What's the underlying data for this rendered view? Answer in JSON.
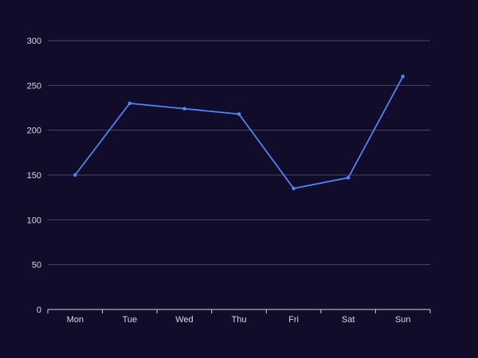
{
  "colors": {
    "background": "#100c2a",
    "grid": "#4a4766",
    "axis": "#cfd3df",
    "text": "#d6d9e3",
    "series": "#4f86f7"
  },
  "chart_data": {
    "type": "line",
    "categories": [
      "Mon",
      "Tue",
      "Wed",
      "Thu",
      "Fri",
      "Sat",
      "Sun"
    ],
    "series": [
      {
        "values": [
          150,
          230,
          224,
          218,
          135,
          147,
          260
        ]
      }
    ],
    "title": "",
    "xlabel": "",
    "ylabel": "",
    "ylim": [
      0,
      300
    ],
    "yticks": [
      0,
      50,
      100,
      150,
      200,
      250,
      300
    ],
    "grid": true,
    "legend": "none"
  }
}
